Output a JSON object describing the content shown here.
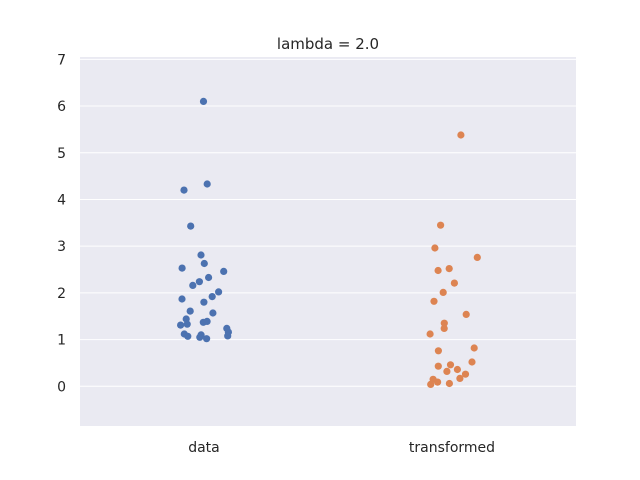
{
  "chart_data": {
    "type": "scatter",
    "title": "lambda = 2.0",
    "xlabel": "",
    "ylabel": "",
    "categories": [
      "data",
      "transformed"
    ],
    "ylim": [
      -0.85,
      7.05
    ],
    "yticks": [
      0,
      1,
      2,
      3,
      4,
      5,
      6,
      7
    ],
    "grid": true,
    "background": "#eaeaf2",
    "series": [
      {
        "category": "data",
        "color": "#4c72b0",
        "values": [
          6.1,
          4.33,
          4.2,
          3.43,
          2.81,
          2.63,
          2.53,
          2.46,
          2.33,
          2.24,
          2.16,
          2.02,
          1.92,
          1.87,
          1.8,
          1.61,
          1.57,
          1.44,
          1.39,
          1.37,
          1.33,
          1.31,
          1.24,
          1.16,
          1.12,
          1.1,
          1.08,
          1.07,
          1.05,
          1.02
        ]
      },
      {
        "category": "transformed",
        "color": "#dd8452",
        "values": [
          5.38,
          3.45,
          2.96,
          2.76,
          2.52,
          2.48,
          2.21,
          2.01,
          1.82,
          1.54,
          1.35,
          1.24,
          1.12,
          0.82,
          0.76,
          0.52,
          0.46,
          0.43,
          0.36,
          0.32,
          0.26,
          0.17,
          0.15,
          0.09,
          0.06,
          0.04
        ]
      }
    ]
  }
}
